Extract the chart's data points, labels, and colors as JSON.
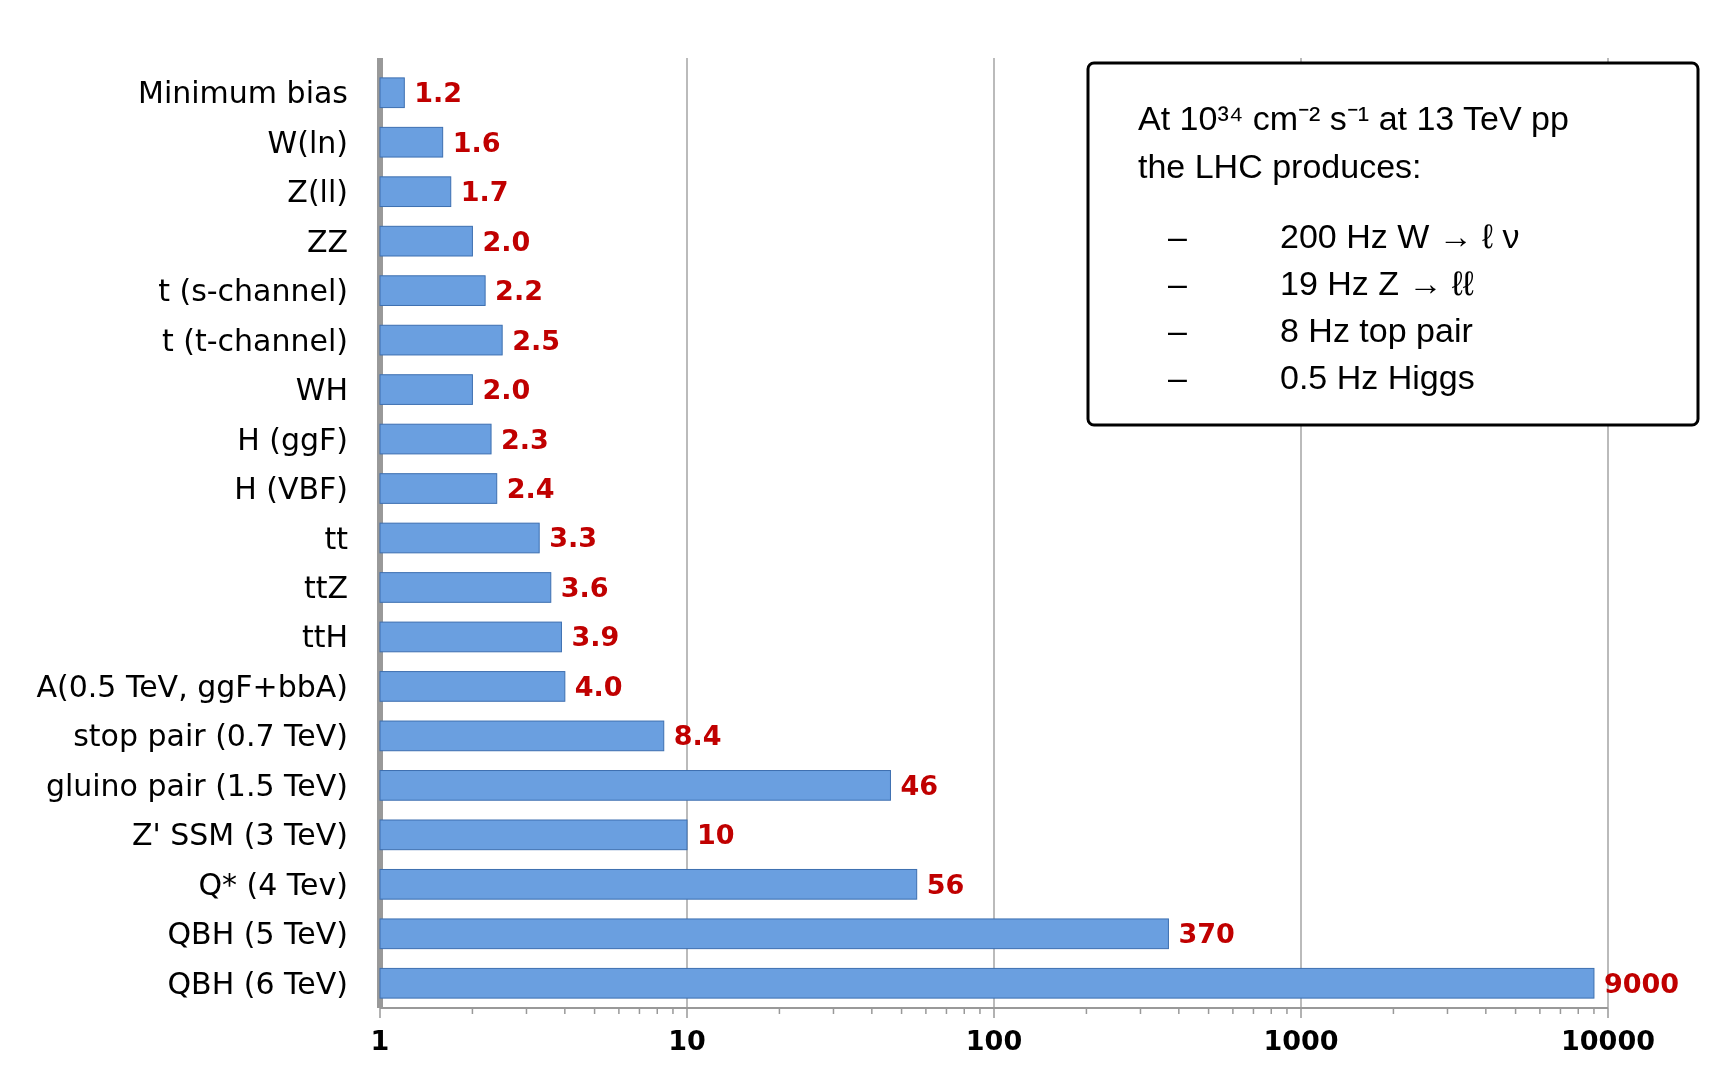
{
  "chart_data": {
    "type": "bar",
    "orientation": "horizontal",
    "log": "x",
    "categories": [
      "Minimum bias",
      "W(ln)",
      "Z(ll)",
      "ZZ",
      "t (s-channel)",
      "t (t-channel)",
      "WH",
      "H (ggF)",
      "H (VBF)",
      "tt",
      "ttZ",
      "ttH",
      "A(0.5 TeV, ggF+bbA)",
      "stop pair (0.7 TeV)",
      "gluino pair (1.5 TeV)",
      "Z' SSM (3 TeV)",
      "Q* (4 Tev)",
      "QBH (5 TeV)",
      "QBH (6 TeV)"
    ],
    "values": [
      1.2,
      1.6,
      1.7,
      2.0,
      2.2,
      2.5,
      2.0,
      2.3,
      2.4,
      3.3,
      3.6,
      3.9,
      4.0,
      8.4,
      46,
      10,
      56,
      370,
      9000
    ],
    "value_labels": [
      "1.2",
      "1.6",
      "1.7",
      "2.0",
      "2.2",
      "2.5",
      "2.0",
      "2.3",
      "2.4",
      "3.3",
      "3.6",
      "3.9",
      "4.0",
      "8.4",
      "46",
      "10",
      "56",
      "370",
      "9000"
    ],
    "color": "#6a9fe0",
    "xlim": [
      1,
      10000
    ],
    "xticks": [
      1,
      {
        "value": 2,
        "label": null
      },
      {
        "value": 3,
        "label": null
      },
      {
        "value": 4,
        "label": null
      },
      {
        "value": 5,
        "label": null
      },
      {
        "value": 6,
        "label": null
      },
      {
        "value": 7,
        "label": null
      },
      {
        "value": 8,
        "label": null
      },
      {
        "value": 9,
        "label": null
      },
      10,
      {
        "value": 20,
        "label": null
      },
      {
        "value": 30,
        "label": null
      },
      {
        "value": 40,
        "label": null
      },
      {
        "value": 50,
        "label": null
      },
      {
        "value": 60,
        "label": null
      },
      {
        "value": 70,
        "label": null
      },
      {
        "value": 80,
        "label": null
      },
      {
        "value": 90,
        "label": null
      },
      100,
      {
        "value": 200,
        "label": null
      },
      {
        "value": 300,
        "label": null
      },
      {
        "value": 400,
        "label": null
      },
      {
        "value": 500,
        "label": null
      },
      {
        "value": 600,
        "label": null
      },
      {
        "value": 700,
        "label": null
      },
      {
        "value": 800,
        "label": null
      },
      {
        "value": 900,
        "label": null
      },
      1000,
      {
        "value": 2000,
        "label": null
      },
      {
        "value": 3000,
        "label": null
      },
      {
        "value": 4000,
        "label": null
      },
      {
        "value": 5000,
        "label": null
      },
      {
        "value": 6000,
        "label": null
      },
      {
        "value": 7000,
        "label": null
      },
      {
        "value": 8000,
        "label": null
      },
      {
        "value": 9000,
        "label": null
      },
      10000
    ],
    "grid": "x",
    "annotations": [
      "At 10³⁴ cm⁻² s⁻¹ at 13 TeV pp",
      "the LHC produces:",
      "–",
      "200 Hz W → ℓ ν",
      "–",
      "19 Hz Z → ℓℓ",
      "–",
      "8 Hz top pair",
      "–",
      "0.5 Hz Higgs"
    ]
  }
}
